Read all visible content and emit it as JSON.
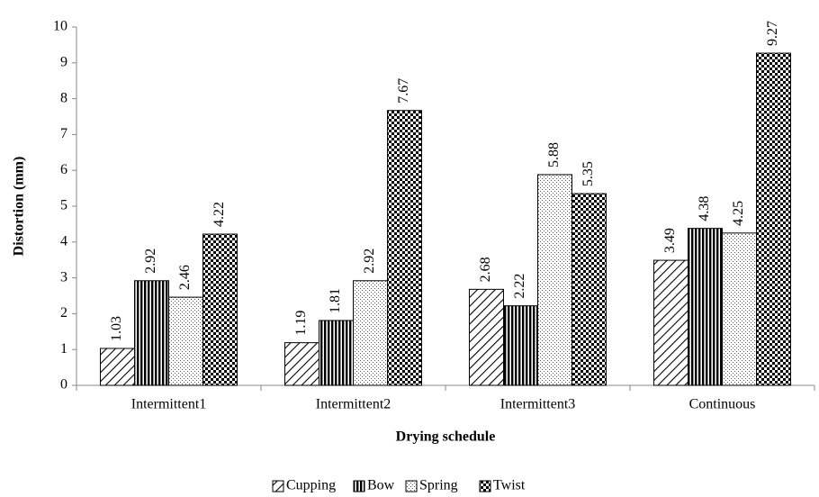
{
  "chart_data": {
    "type": "bar",
    "x_label": "Drying schedule",
    "y_label": "Distortion (mm)",
    "categories": [
      "Intermittent1",
      "Intermittent2",
      "Intermittent3",
      "Continuous"
    ],
    "series": [
      {
        "name": "Cupping",
        "color": "#000000",
        "pattern": "diagonal",
        "values": [
          1.03,
          1.19,
          2.68,
          3.49
        ]
      },
      {
        "name": "Bow",
        "color": "#000000",
        "pattern": "vertical",
        "values": [
          2.92,
          1.81,
          2.22,
          4.38
        ]
      },
      {
        "name": "Spring",
        "color": "#000000",
        "pattern": "dots",
        "values": [
          2.46,
          2.92,
          5.88,
          4.25
        ]
      },
      {
        "name": "Twist",
        "color": "#000000",
        "pattern": "checker",
        "values": [
          4.22,
          7.67,
          5.35,
          9.27
        ]
      }
    ],
    "ylim": [
      0,
      10
    ],
    "yticks": [
      0,
      1,
      2,
      3,
      4,
      5,
      6,
      7,
      8,
      9,
      10
    ],
    "legend": "bottom",
    "grid": false
  }
}
